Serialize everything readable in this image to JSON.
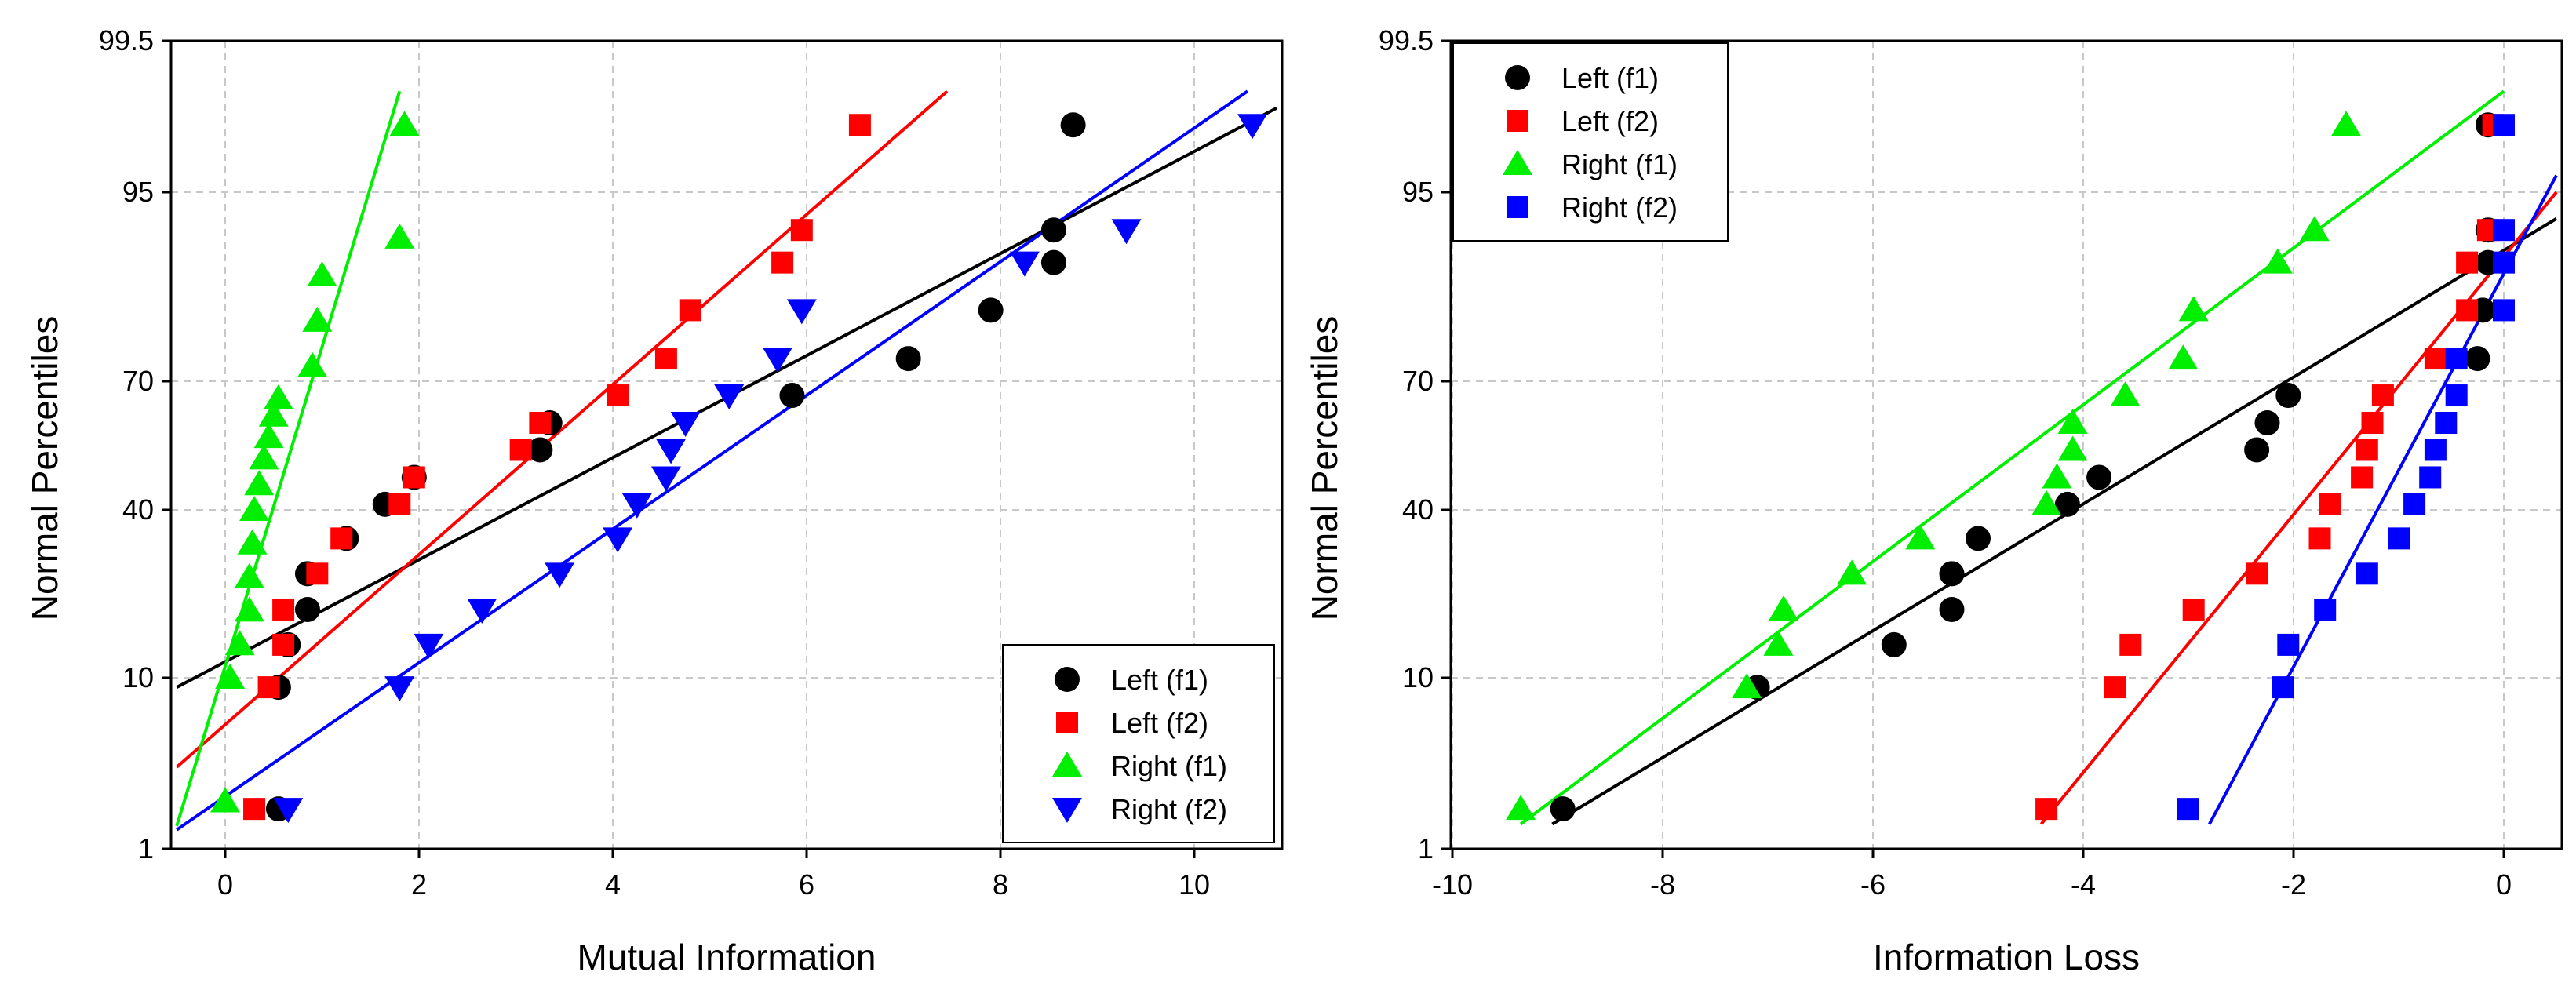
{
  "chart_data": [
    {
      "type": "scatter",
      "xlabel": "Mutual Information",
      "ylabel": "Normal Percentiles",
      "xlim": [
        -0.5,
        11.0
      ],
      "xticks": [
        0,
        2,
        4,
        6,
        8,
        10
      ],
      "xtick_labels": [
        "0",
        "2",
        "4",
        "6",
        "8",
        "10"
      ],
      "yticks": [
        1,
        10,
        40,
        70,
        95,
        99.5
      ],
      "ytick_labels": [
        "1",
        "10",
        "40",
        "70",
        "95",
        "99.5"
      ],
      "grid": true,
      "legend_position": "bottom-right",
      "series": [
        {
          "name": "Left (f1)",
          "color": "#000000",
          "marker": "circle",
          "x": [
            0.55,
            0.55,
            0.65,
            0.85,
            0.85,
            1.25,
            1.65,
            1.95,
            3.25,
            3.35,
            5.85,
            7.05,
            7.9,
            8.55,
            8.55,
            8.75
          ],
          "y": [
            3.1,
            9.5,
            15.9,
            22.2,
            28.6,
            34.9,
            41.3,
            47.6,
            54.0,
            60.3,
            66.7,
            73.0,
            79.4,
            85.7,
            90.0,
            97.0
          ],
          "fit": [
            [
              -0.5,
              9.5
            ],
            [
              10.85,
              97.5
            ]
          ]
        },
        {
          "name": "Left (f2)",
          "color": "#ff0000",
          "marker": "square",
          "x": [
            0.3,
            0.45,
            0.6,
            0.6,
            0.95,
            1.2,
            1.8,
            1.95,
            3.05,
            3.25,
            4.05,
            4.55,
            4.8,
            5.75,
            5.95,
            6.55
          ],
          "y": [
            3.1,
            9.5,
            15.9,
            22.2,
            28.6,
            34.9,
            41.3,
            47.6,
            54.0,
            60.3,
            66.7,
            73.0,
            79.4,
            85.7,
            90.0,
            97.0
          ],
          "fit": [
            [
              -0.5,
              5.3
            ],
            [
              7.45,
              98.0
            ]
          ]
        },
        {
          "name": "Right (f1)",
          "color": "#00ee00",
          "marker": "triangle-up",
          "x": [
            0.0,
            0.05,
            0.15,
            0.25,
            0.25,
            0.28,
            0.3,
            0.35,
            0.4,
            0.45,
            0.5,
            0.55,
            0.9,
            0.95,
            1.0,
            1.8,
            1.85
          ],
          "y": [
            3.5,
            10.0,
            16.0,
            22.0,
            28.0,
            34.0,
            40.0,
            46.0,
            52.0,
            57.0,
            62.0,
            66.0,
            72.0,
            78.0,
            84.0,
            89.0,
            97.0
          ],
          "fit": [
            [
              -0.5,
              2.2
            ],
            [
              1.8,
              98.0
            ]
          ]
        },
        {
          "name": "Right (f2)",
          "color": "#0000ff",
          "marker": "triangle-down",
          "x": [
            0.65,
            1.8,
            2.1,
            2.65,
            3.45,
            4.05,
            4.25,
            4.55,
            4.6,
            4.75,
            5.2,
            5.7,
            5.95,
            8.25,
            9.3,
            10.6
          ],
          "y": [
            3.1,
            9.5,
            15.9,
            22.2,
            28.6,
            34.9,
            41.3,
            47.6,
            54.0,
            60.3,
            66.7,
            73.0,
            79.4,
            85.7,
            90.0,
            97.0
          ],
          "fit": [
            [
              -0.5,
              2.0
            ],
            [
              10.55,
              98.0
            ]
          ]
        }
      ]
    },
    {
      "type": "scatter",
      "xlabel": "Information Loss",
      "ylabel": "Normal Percentiles",
      "xlim": [
        -10.0,
        0.5
      ],
      "xticks": [
        -10,
        -8,
        -6,
        -4,
        -2,
        0
      ],
      "xtick_labels": [
        "-10",
        "-8",
        "-6",
        "-4",
        "-2",
        "0"
      ],
      "yticks": [
        1,
        10,
        40,
        70,
        95,
        99.5
      ],
      "ytick_labels": [
        "1",
        "10",
        "40",
        "70",
        "95",
        "99.5"
      ],
      "grid": true,
      "legend_position": "top-left",
      "series": [
        {
          "name": "Left (f1)",
          "color": "#000000",
          "marker": "circle",
          "x": [
            -8.95,
            -7.1,
            -5.8,
            -5.25,
            -5.25,
            -5.0,
            -4.15,
            -3.85,
            -2.35,
            -2.25,
            -2.05,
            -0.25,
            -0.2,
            -0.15,
            -0.15,
            -0.15
          ],
          "y": [
            3.1,
            9.5,
            15.9,
            22.2,
            28.6,
            34.9,
            41.3,
            47.6,
            54.0,
            60.3,
            66.7,
            73.0,
            79.4,
            85.7,
            90.0,
            97.0
          ],
          "fit": [
            [
              -9.05,
              2.3
            ],
            [
              0.5,
              91.5
            ]
          ]
        },
        {
          "name": "Left (f2)",
          "color": "#ff0000",
          "marker": "square",
          "x": [
            -4.35,
            -3.7,
            -3.55,
            -2.95,
            -2.35,
            -1.75,
            -1.65,
            -1.35,
            -1.3,
            -1.25,
            -1.15,
            -0.65,
            -0.35,
            -0.35,
            -0.15,
            -0.1
          ],
          "y": [
            3.1,
            9.5,
            15.9,
            22.2,
            28.6,
            34.9,
            41.3,
            47.6,
            54.0,
            60.3,
            66.7,
            73.0,
            79.4,
            85.7,
            90.0,
            97.0
          ],
          "fit": [
            [
              -4.4,
              2.3
            ],
            [
              0.5,
              95.0
            ]
          ]
        },
        {
          "name": "Right (f1)",
          "color": "#00ee00",
          "marker": "triangle-up",
          "x": [
            -9.35,
            -7.2,
            -6.9,
            -6.85,
            -6.2,
            -5.55,
            -4.35,
            -4.25,
            -4.1,
            -4.1,
            -3.6,
            -3.05,
            -2.95,
            -2.15,
            -1.8,
            -1.5
          ],
          "y": [
            3.1,
            9.5,
            15.9,
            22.2,
            28.6,
            34.9,
            41.3,
            47.6,
            54.0,
            60.3,
            66.7,
            73.0,
            79.4,
            85.7,
            90.0,
            97.0
          ],
          "fit": [
            [
              -9.35,
              2.3
            ],
            [
              0.0,
              98.0
            ]
          ]
        },
        {
          "name": "Right (f2)",
          "color": "#0000ff",
          "marker": "square",
          "x": [
            -3.0,
            -2.1,
            -2.05,
            -1.7,
            -1.3,
            -1.0,
            -0.85,
            -0.7,
            -0.65,
            -0.55,
            -0.45,
            -0.45,
            0.0,
            0.0,
            0.0,
            0.0
          ],
          "y": [
            3.1,
            9.5,
            15.9,
            22.2,
            28.6,
            34.9,
            41.3,
            47.6,
            54.0,
            60.3,
            66.7,
            73.0,
            79.4,
            85.7,
            90.0,
            97.0
          ],
          "fit": [
            [
              -2.8,
              2.3
            ],
            [
              0.5,
              95.5
            ]
          ]
        }
      ]
    }
  ]
}
